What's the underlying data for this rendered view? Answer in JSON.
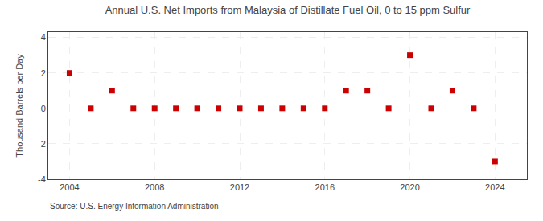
{
  "chart_data": {
    "type": "scatter",
    "title": "Annual U.S. Net Imports from Malaysia of Distillate Fuel Oil, 0 to 15 ppm Sulfur",
    "y_label": "Thousand Barrels per Day",
    "source": "Source: U.S. Energy Information Administration",
    "x": [
      2004,
      2005,
      2006,
      2007,
      2008,
      2009,
      2010,
      2011,
      2012,
      2013,
      2014,
      2015,
      2016,
      2017,
      2018,
      2019,
      2020,
      2021,
      2022,
      2023,
      2024
    ],
    "values": [
      2,
      0,
      1,
      0,
      0,
      0,
      0,
      0,
      0,
      0,
      0,
      0,
      0,
      1,
      1,
      0,
      3,
      0,
      1,
      0,
      -3
    ],
    "color": "#cc0000",
    "marker": "square",
    "xlim": [
      2003.0,
      2025.5
    ],
    "xticks": [
      2004,
      2008,
      2012,
      2016,
      2020,
      2024
    ],
    "ylim": [
      -4,
      4.3
    ],
    "yticks": [
      -4,
      -2,
      0,
      2,
      4
    ],
    "grid": true
  }
}
